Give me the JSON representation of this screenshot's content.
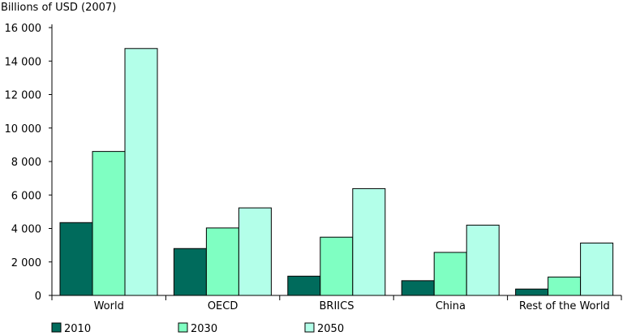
{
  "chart_data": {
    "type": "bar",
    "ylabel": "Billions of USD (2007)",
    "categories": [
      "World",
      "OECD",
      "BRIICS",
      "China",
      "Rest of the World"
    ],
    "series": [
      {
        "name": "2010",
        "values": [
          4350,
          2800,
          1150,
          880,
          380
        ],
        "color": "#006b5c"
      },
      {
        "name": "2030",
        "values": [
          8600,
          4030,
          3480,
          2570,
          1100
        ],
        "color": "#7fffc2"
      },
      {
        "name": "2050",
        "values": [
          14750,
          5230,
          6380,
          4200,
          3130
        ],
        "color": "#b3ffe9"
      }
    ],
    "ylim": [
      0,
      16000
    ],
    "yticks": [
      0,
      2000,
      4000,
      6000,
      8000,
      10000,
      12000,
      14000,
      16000
    ],
    "ytick_labels": [
      "0",
      "2 000",
      "4 000",
      "6 000",
      "8 000",
      "10 000",
      "12 000",
      "14 000",
      "16 000"
    ],
    "grid": false,
    "legend_position": "bottom"
  }
}
